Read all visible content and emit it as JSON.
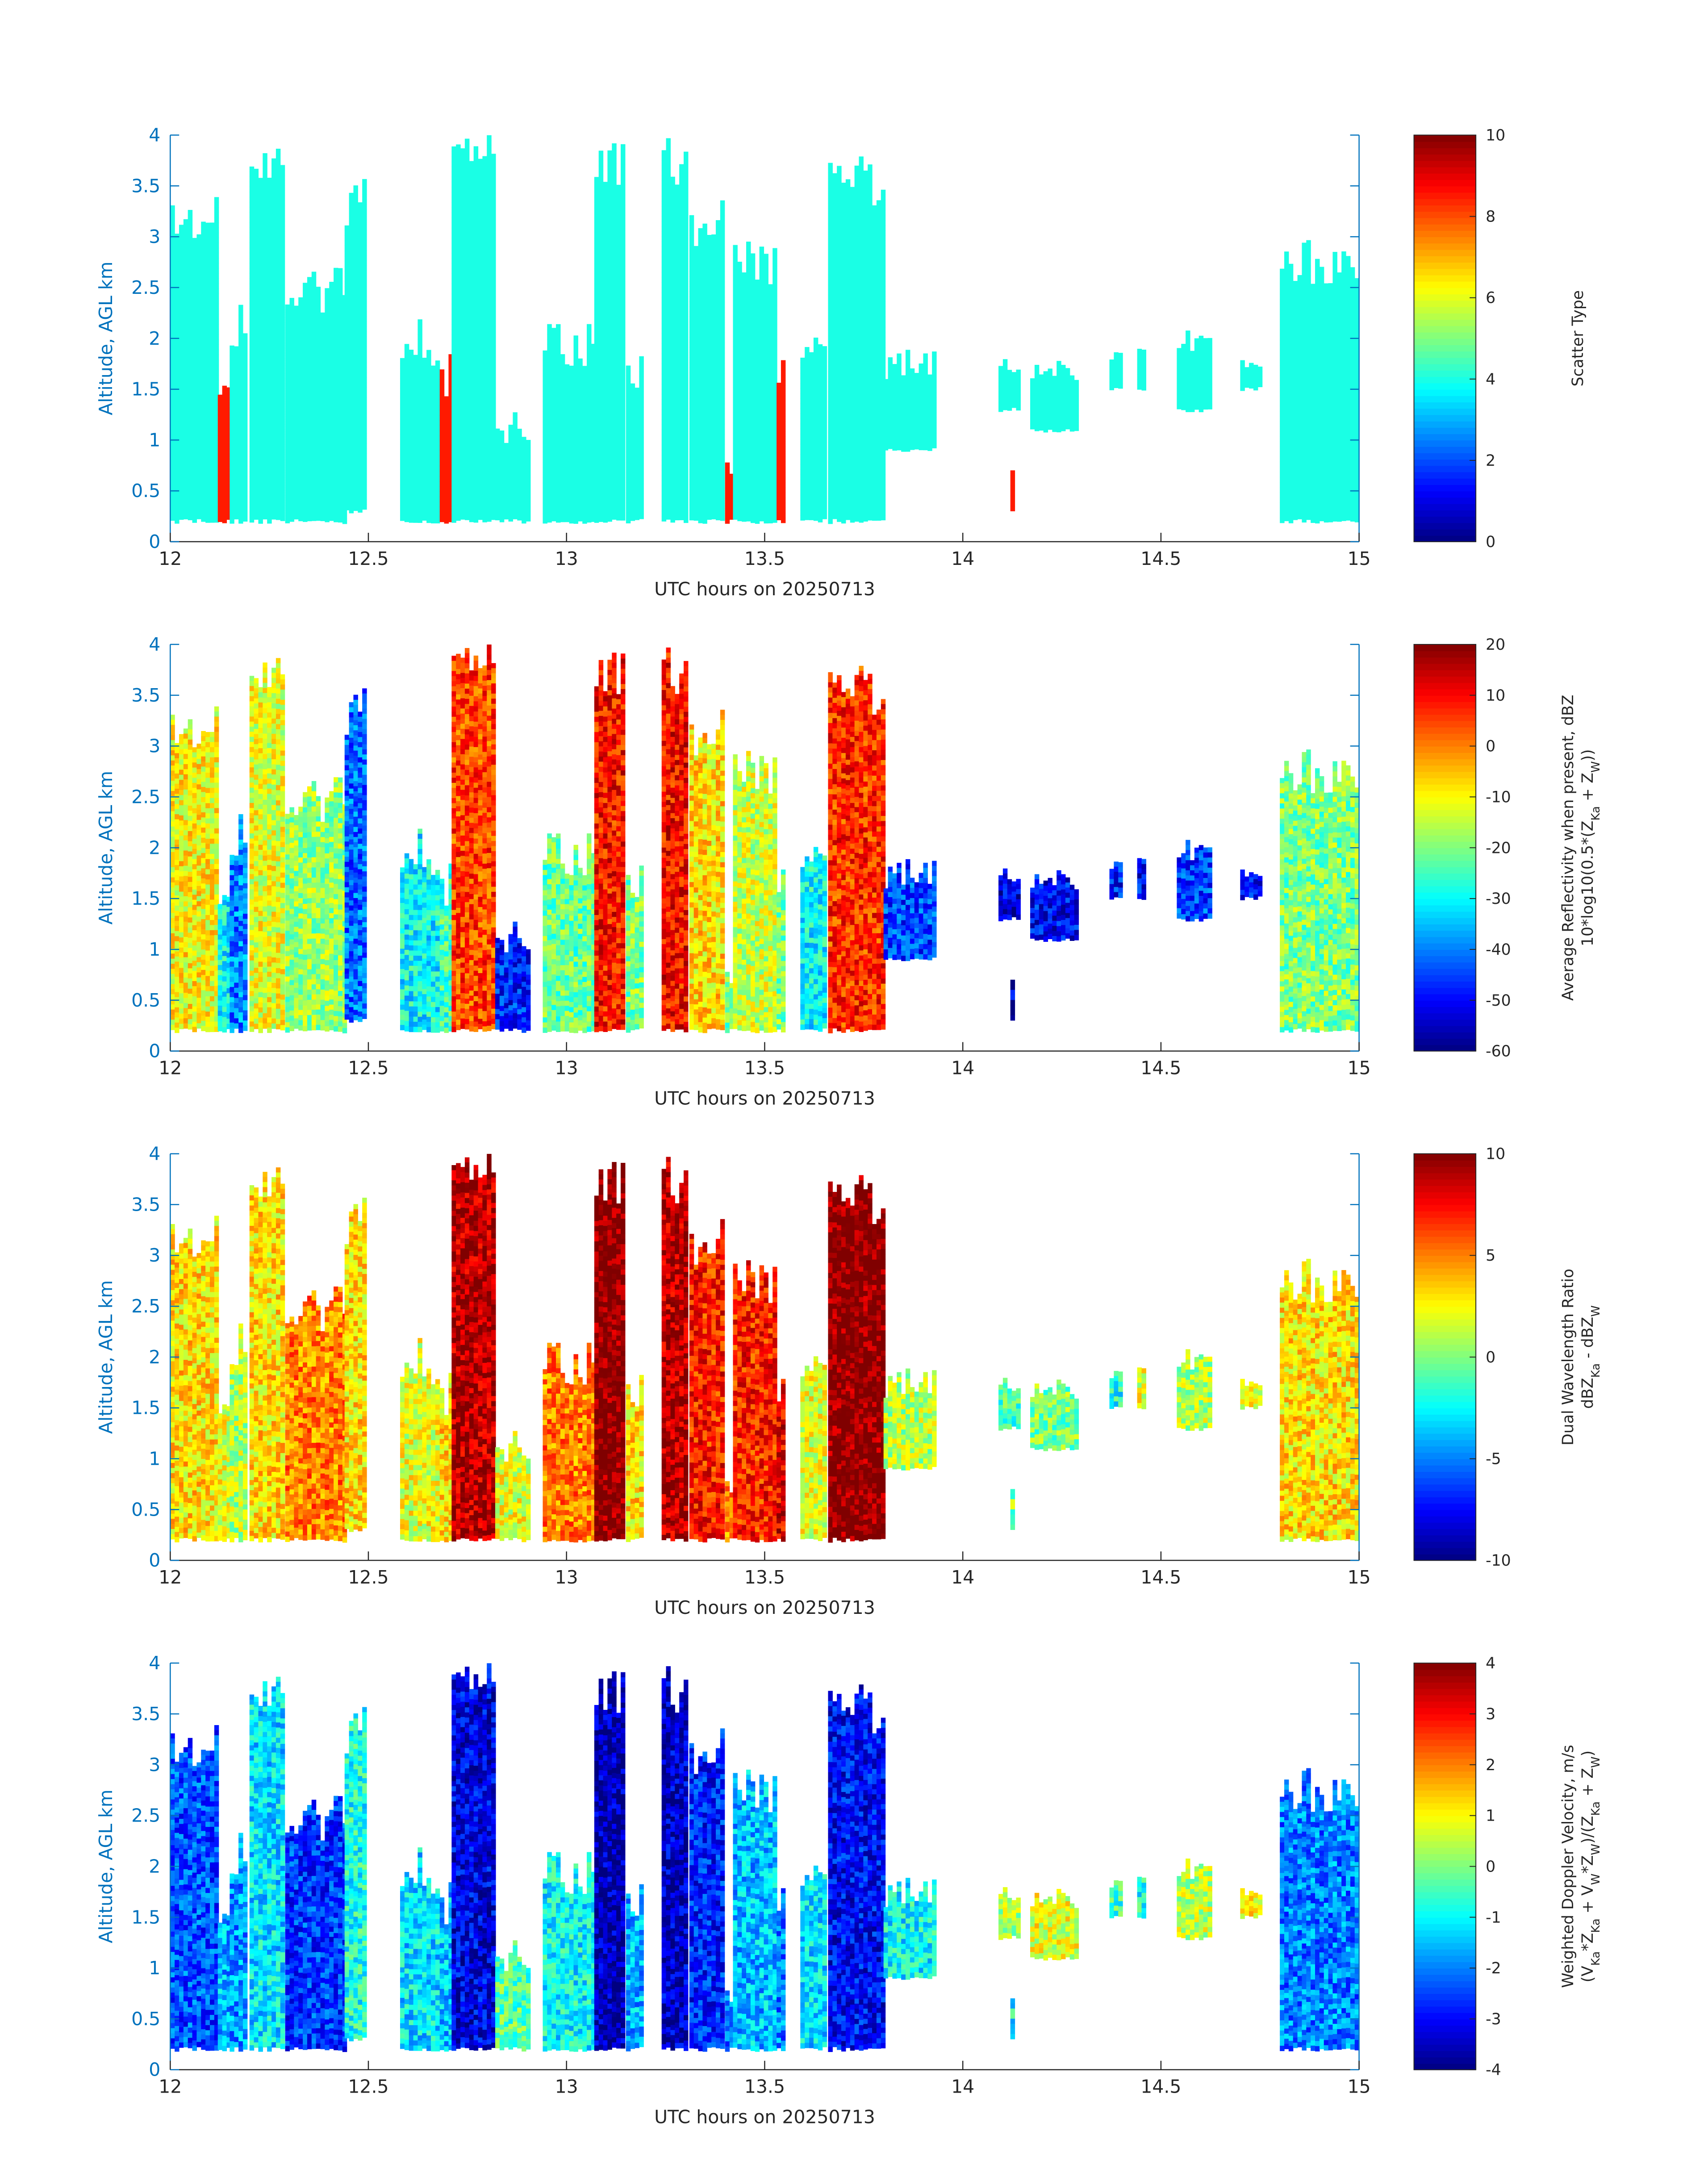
{
  "chart_data": [
    {
      "type": "heatmap",
      "title": "",
      "xlabel": "UTC hours on 20250713",
      "ylabel": "Altitude, AGL km",
      "xlim": [
        12,
        15
      ],
      "ylim": [
        0,
        4
      ],
      "xticks": [
        12,
        12.5,
        13,
        13.5,
        14,
        14.5,
        15
      ],
      "yticks": [
        0,
        0.5,
        1,
        1.5,
        2,
        2.5,
        3,
        3.5,
        4
      ],
      "colormap": "jet",
      "colorbar": {
        "label_lines": [
          "Scatter Type"
        ],
        "range": [
          0,
          10
        ],
        "ticks": [
          0,
          2,
          4,
          6,
          8,
          10
        ]
      },
      "notes": "Scatter type mostly 4 (cyan); isolated columns of 8.5 (orange-red)",
      "colors": {
        "axis": "#0072BD",
        "dominant_class": "#1effd8",
        "secondary_class": "#ff4a10"
      }
    },
    {
      "type": "heatmap",
      "title": "",
      "xlabel": "UTC hours on 20250713",
      "ylabel": "Altitude, AGL km",
      "xlim": [
        12,
        15
      ],
      "ylim": [
        0,
        4
      ],
      "xticks": [
        12,
        12.5,
        13,
        13.5,
        14,
        14.5,
        15
      ],
      "yticks": [
        0,
        0.5,
        1,
        1.5,
        2,
        2.5,
        3,
        3.5,
        4
      ],
      "colormap": "jet",
      "colorbar": {
        "label_lines": [
          "Average Reflectivity when present, dBZ",
          "10*log10(0.5*(Z_Ka + Z_W))"
        ],
        "range": [
          -60,
          20
        ],
        "ticks": [
          -60,
          -50,
          -40,
          -30,
          -20,
          -10,
          0,
          10,
          20
        ]
      },
      "colors": {
        "axis": "#0072BD"
      }
    },
    {
      "type": "heatmap",
      "title": "",
      "xlabel": "UTC hours on 20250713",
      "ylabel": "Altitude, AGL km",
      "xlim": [
        12,
        15
      ],
      "ylim": [
        0,
        4
      ],
      "xticks": [
        12,
        12.5,
        13,
        13.5,
        14,
        14.5,
        15
      ],
      "yticks": [
        0,
        0.5,
        1,
        1.5,
        2,
        2.5,
        3,
        3.5,
        4
      ],
      "colormap": "jet",
      "colorbar": {
        "label_lines": [
          "Dual Wavelength Ratio",
          "dBZ_Ka - dBZ_W"
        ],
        "range": [
          -10,
          10
        ],
        "ticks": [
          -10,
          -5,
          0,
          5,
          10
        ]
      },
      "colors": {
        "axis": "#0072BD"
      }
    },
    {
      "type": "heatmap",
      "title": "",
      "xlabel": "UTC hours on 20250713",
      "ylabel": "Altitude, AGL km",
      "xlim": [
        12,
        15
      ],
      "ylim": [
        0,
        4
      ],
      "xticks": [
        12,
        12.5,
        13,
        13.5,
        14,
        14.5,
        15
      ],
      "yticks": [
        0,
        0.5,
        1,
        1.5,
        2,
        2.5,
        3,
        3.5,
        4
      ],
      "colormap": "jet",
      "colorbar": {
        "label_lines": [
          "Weighted Doppler Velocity, m/s",
          "(V_Ka*Z_Ka + V_W*Z_W)/(Z_Ka + Z_W)"
        ],
        "range": [
          -4,
          4
        ],
        "ticks": [
          -4,
          -3,
          -2,
          -1,
          0,
          1,
          2,
          3,
          4
        ]
      },
      "colors": {
        "axis": "#0072BD"
      }
    }
  ],
  "echo_segments": [
    {
      "t0": 12.0,
      "t1": 12.12,
      "z0": 0.2,
      "z1": 3.4,
      "dbz": -10,
      "dwr": 3,
      "vel": -2.4,
      "type": 4
    },
    {
      "t0": 12.12,
      "t1": 12.15,
      "z0": 0.2,
      "z1": 1.7,
      "dbz": -30,
      "dwr": 2,
      "vel": -1.6,
      "type": 8.5
    },
    {
      "t0": 12.15,
      "t1": 12.2,
      "z0": 0.2,
      "z1": 2.4,
      "dbz": -40,
      "dwr": 1,
      "vel": -1.8,
      "type": 4
    },
    {
      "t0": 12.2,
      "t1": 12.29,
      "z0": 0.2,
      "z1": 4.0,
      "dbz": -12,
      "dwr": 3,
      "vel": -1.2,
      "type": 4
    },
    {
      "t0": 12.29,
      "t1": 12.44,
      "z0": 0.2,
      "z1": 2.7,
      "dbz": -18,
      "dwr": 5,
      "vel": -2.6,
      "type": 4
    },
    {
      "t0": 12.44,
      "t1": 12.5,
      "z0": 0.3,
      "z1": 3.6,
      "dbz": -42,
      "dwr": 3,
      "vel": -0.8,
      "type": 4
    },
    {
      "t0": 12.58,
      "t1": 12.68,
      "z0": 0.2,
      "z1": 2.2,
      "dbz": -30,
      "dwr": 2,
      "vel": -1.2,
      "type": 4
    },
    {
      "t0": 12.68,
      "t1": 12.71,
      "z0": 0.2,
      "z1": 1.9,
      "dbz": -25,
      "dwr": 3,
      "vel": -1.5,
      "type": 8.5
    },
    {
      "t0": 12.71,
      "t1": 12.82,
      "z0": 0.2,
      "z1": 4.0,
      "dbz": 5,
      "dwr": 9,
      "vel": -3.2,
      "type": 4
    },
    {
      "t0": 12.82,
      "t1": 12.91,
      "z0": 0.2,
      "z1": 1.3,
      "dbz": -48,
      "dwr": 2,
      "vel": -0.3,
      "type": 4
    },
    {
      "t0": 12.94,
      "t1": 13.07,
      "z0": 0.2,
      "z1": 2.2,
      "dbz": -22,
      "dwr": 5,
      "vel": -1.0,
      "type": 4
    },
    {
      "t0": 13.07,
      "t1": 13.15,
      "z0": 0.2,
      "z1": 4.0,
      "dbz": 9,
      "dwr": 10,
      "vel": -3.6,
      "type": 4
    },
    {
      "t0": 13.15,
      "t1": 13.2,
      "z0": 0.2,
      "z1": 2.0,
      "dbz": -20,
      "dwr": 3,
      "vel": -1.6,
      "type": 4
    },
    {
      "t0": 13.24,
      "t1": 13.31,
      "z0": 0.2,
      "z1": 4.0,
      "dbz": 10,
      "dwr": 9,
      "vel": -3.4,
      "type": 4
    },
    {
      "t0": 13.31,
      "t1": 13.4,
      "z0": 0.2,
      "z1": 3.4,
      "dbz": -8,
      "dwr": 7,
      "vel": -2.8,
      "type": 4
    },
    {
      "t0": 13.4,
      "t1": 13.42,
      "z0": 0.2,
      "z1": 0.8,
      "dbz": -20,
      "dwr": 5,
      "vel": -2.0,
      "type": 8.5
    },
    {
      "t0": 13.42,
      "t1": 13.53,
      "z0": 0.2,
      "z1": 3.0,
      "dbz": -14,
      "dwr": 7,
      "vel": -1.5,
      "type": 4
    },
    {
      "t0": 13.53,
      "t1": 13.55,
      "z0": 0.2,
      "z1": 1.8,
      "dbz": -20,
      "dwr": 8,
      "vel": -2.0,
      "type": 8.5
    },
    {
      "t0": 13.59,
      "t1": 13.66,
      "z0": 0.2,
      "z1": 2.3,
      "dbz": -30,
      "dwr": 2,
      "vel": -1.2,
      "type": 4
    },
    {
      "t0": 13.66,
      "t1": 13.8,
      "z0": 0.2,
      "z1": 3.8,
      "dbz": 7,
      "dwr": 10,
      "vel": -3.0,
      "type": 4
    },
    {
      "t0": 13.8,
      "t1": 13.93,
      "z0": 0.9,
      "z1": 1.9,
      "dbz": -45,
      "dwr": 1,
      "vel": -1.0,
      "type": 4
    },
    {
      "t0": 14.09,
      "t1": 14.14,
      "z0": 1.3,
      "z1": 1.8,
      "dbz": -52,
      "dwr": -1,
      "vel": 0.4,
      "type": 4
    },
    {
      "t0": 14.12,
      "t1": 14.13,
      "z0": 0.3,
      "z1": 0.8,
      "dbz": -55,
      "dwr": 0,
      "vel": -1.0,
      "type": 8.5
    },
    {
      "t0": 14.17,
      "t1": 14.29,
      "z0": 1.1,
      "z1": 1.8,
      "dbz": -50,
      "dwr": 0,
      "vel": 0.8,
      "type": 4
    },
    {
      "t0": 14.37,
      "t1": 14.4,
      "z0": 1.5,
      "z1": 1.9,
      "dbz": -48,
      "dwr": -2,
      "vel": -0.5,
      "type": 4
    },
    {
      "t0": 14.44,
      "t1": 14.46,
      "z0": 1.5,
      "z1": 1.9,
      "dbz": -50,
      "dwr": 2,
      "vel": -0.8,
      "type": 4
    },
    {
      "t0": 14.54,
      "t1": 14.63,
      "z0": 1.3,
      "z1": 2.1,
      "dbz": -45,
      "dwr": 1,
      "vel": 0.5,
      "type": 4
    },
    {
      "t0": 14.7,
      "t1": 14.75,
      "z0": 1.5,
      "z1": 1.8,
      "dbz": -50,
      "dwr": 2,
      "vel": 1.0,
      "type": 4
    },
    {
      "t0": 14.8,
      "t1": 15.0,
      "z0": 0.2,
      "z1": 3.0,
      "dbz": -20,
      "dwr": 3,
      "vel": -2.0,
      "type": 4
    }
  ]
}
